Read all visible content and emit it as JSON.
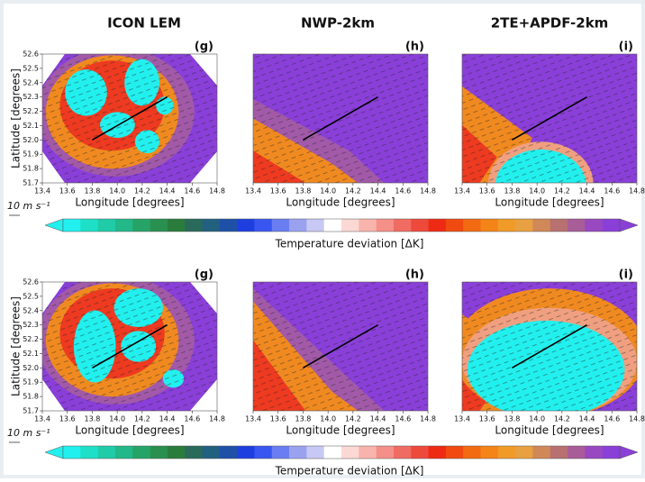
{
  "columns": [
    "ICON LEM",
    "NWP-2km",
    "2TE+APDF-2km"
  ],
  "rows": [
    {
      "panel_labels": [
        "(g)",
        "(h)",
        "(i)"
      ]
    },
    {
      "panel_labels": [
        "(g)",
        "(h)",
        "(i)"
      ]
    }
  ],
  "x_label": "Longitude [degrees]",
  "y_label": "Latitude [degrees]",
  "xticks": [
    "13.4",
    "13.6",
    "13.8",
    "14.0",
    "14.2",
    "14.4",
    "14.6",
    "14.8"
  ],
  "yticks": [
    "52.6",
    "52.5",
    "52.4",
    "52.3",
    "52.2",
    "52.1",
    "52.0",
    "51.9",
    "51.8",
    "51.7"
  ],
  "scale_label": "10 m s⁻¹",
  "colorbar_label": "Temperature deviation [ΔK]"
}
